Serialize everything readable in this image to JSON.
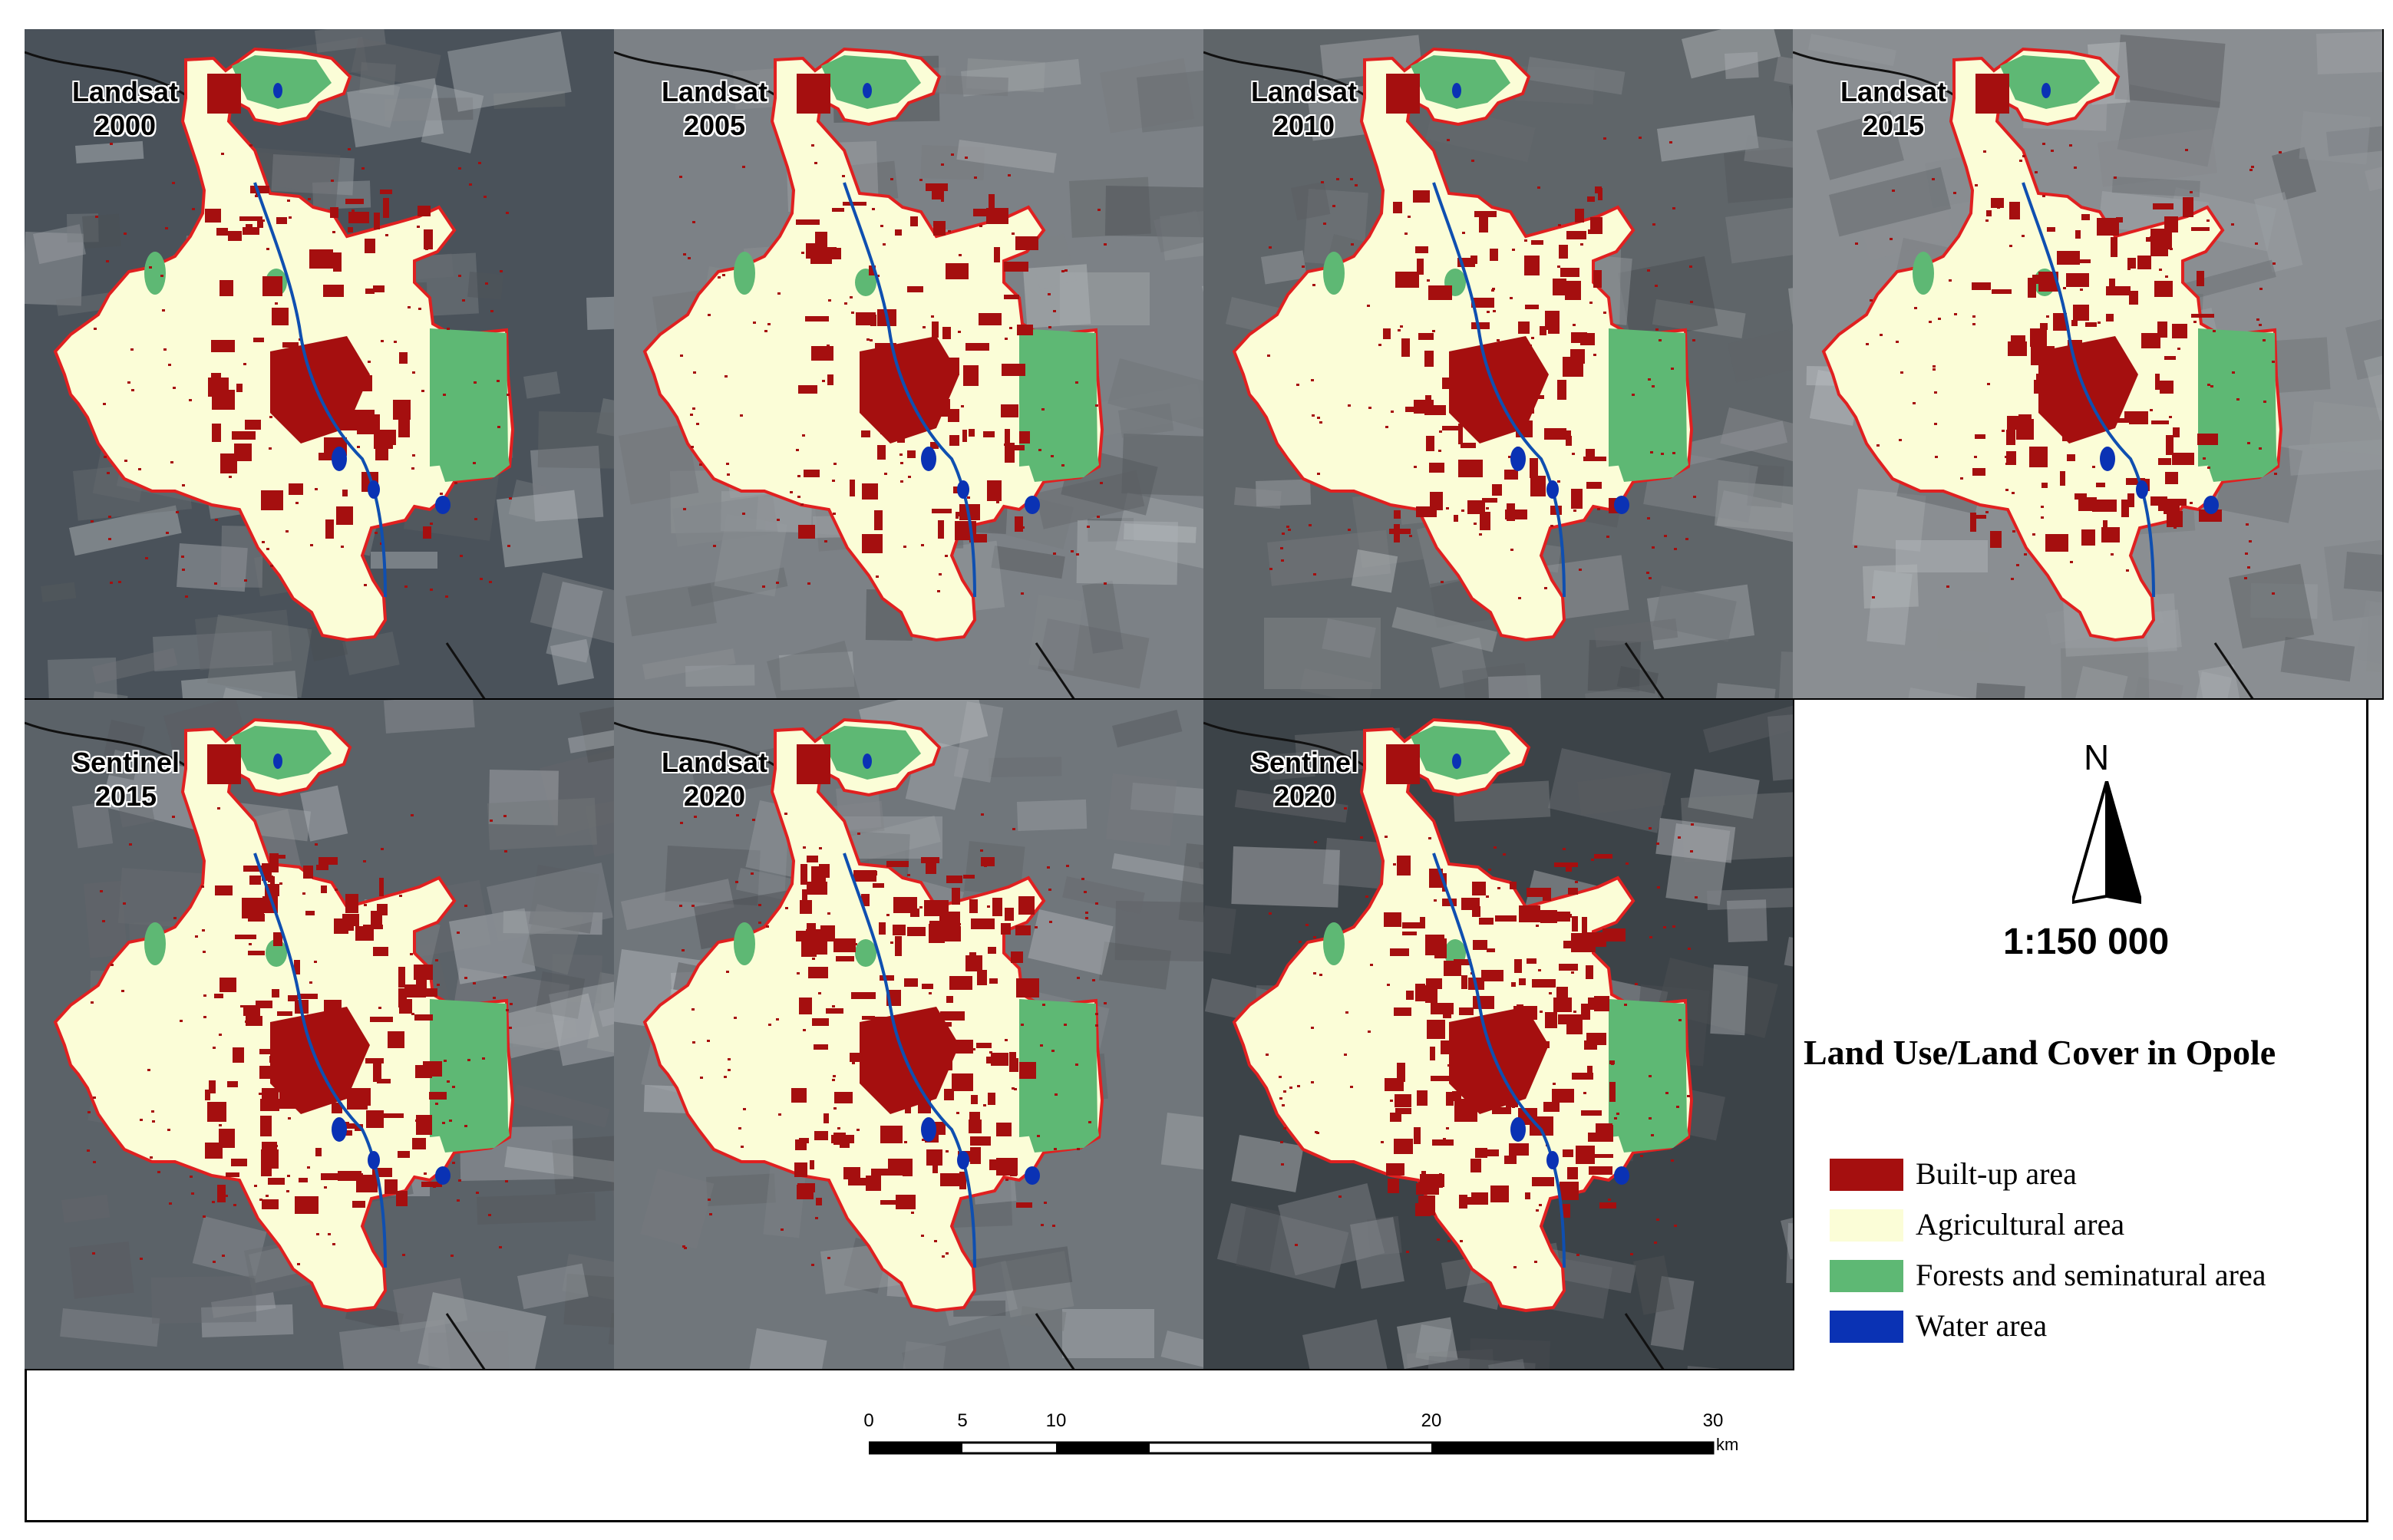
{
  "panels": [
    {
      "sensor": "Landsat",
      "year": "2000"
    },
    {
      "sensor": "Landsat",
      "year": "2005"
    },
    {
      "sensor": "Landsat",
      "year": "2010"
    },
    {
      "sensor": "Landsat",
      "year": "2015"
    },
    {
      "sensor": "Sentinel",
      "year": "2015"
    },
    {
      "sensor": "Landsat",
      "year": "2020"
    },
    {
      "sensor": "Sentinel",
      "year": "2020"
    }
  ],
  "north_arrow": {
    "label": "N"
  },
  "scale_ratio": "1:150 000",
  "legend": {
    "title": "Land Use/Land Cover in Opole",
    "items": [
      {
        "label": "Built-up area",
        "color": "#a50f0f"
      },
      {
        "label": "Agricultural area",
        "color": "#fbfdd7"
      },
      {
        "label": "Forests and seminatural area",
        "color": "#5eb874"
      },
      {
        "label": "Water area",
        "color": "#0a32b4"
      }
    ]
  },
  "scale_bar": {
    "ticks": [
      "0",
      "5",
      "10",
      "20",
      "30"
    ],
    "unit": "km"
  },
  "colors": {
    "boundary": "#e02020",
    "river": "#0f4fb0"
  }
}
